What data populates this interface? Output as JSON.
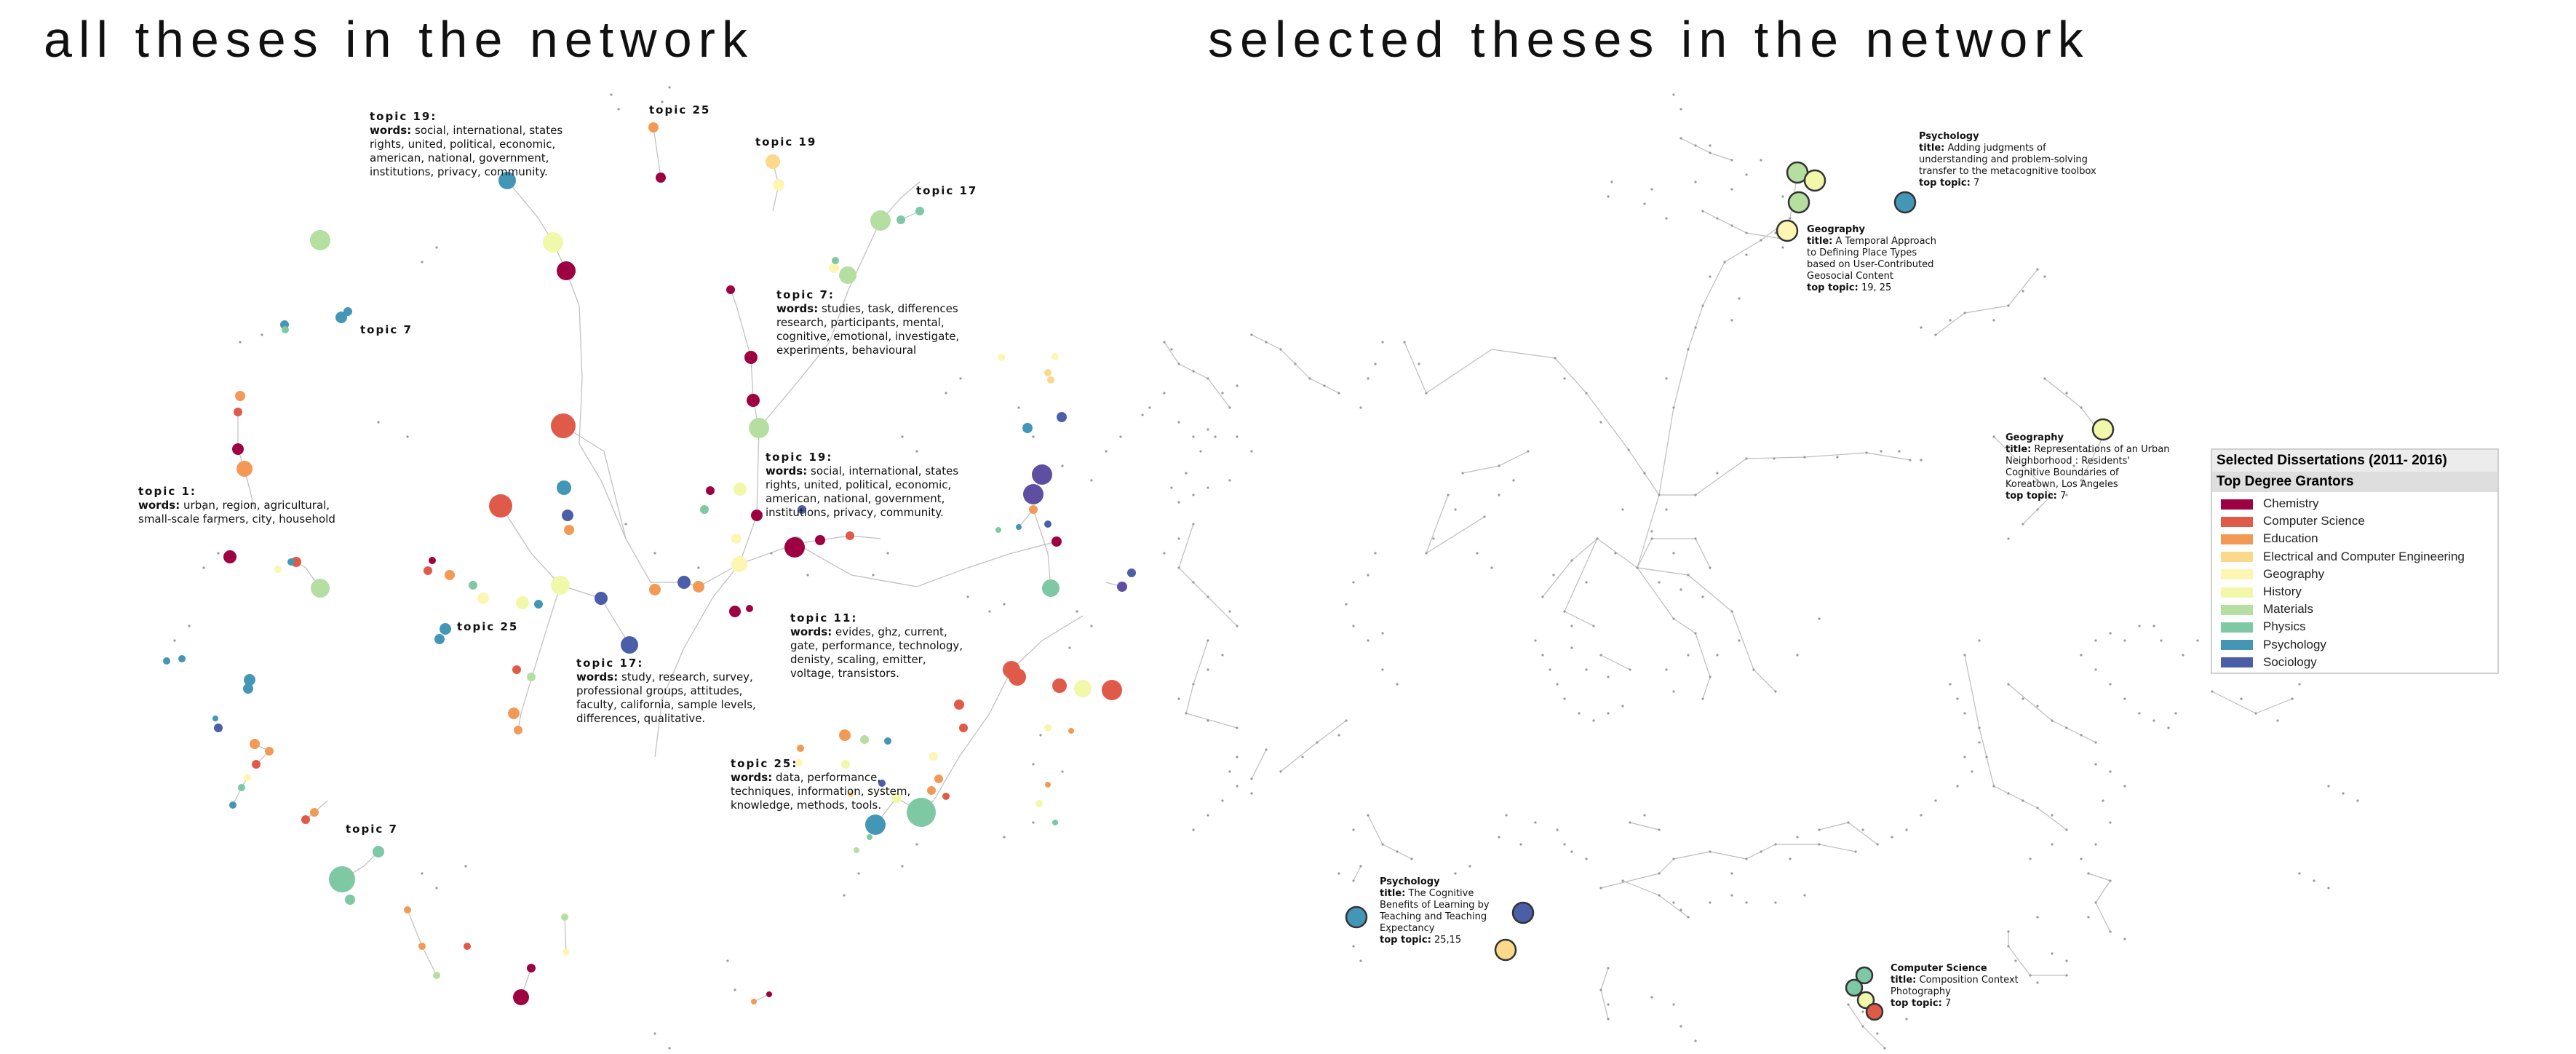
{
  "headings": {
    "left": "all theses in the network",
    "right": "selected theses in the network"
  },
  "colors": {
    "Chemistry": "#9e0142",
    "Computer Science": "#e05a4a",
    "Education": "#f29a55",
    "Electrical and Computer Engineering": "#fcd88a",
    "Geography": "#fdf6b2",
    "History": "#f1f8a9",
    "Materials": "#b4dfa1",
    "Physics": "#7ec8a4",
    "Psychology": "#4496b6",
    "Sociology": "#4a5fa8",
    "Other": "#5e4fa2",
    "edge": "#bdbdbd"
  },
  "left_annotations": [
    {
      "id": "t19a",
      "title": "topic 19:",
      "words_label": "words:",
      "words": "social, international, states rights, united, political, economic, american, national, government, institutions, privacy, community."
    },
    {
      "id": "t7a",
      "title": "topic 7:",
      "words_label": "words:",
      "words": "studies, task, differences research, participants, mental, cognitive, emotional, investigate, experiments, behavioural"
    },
    {
      "id": "t19b",
      "title": "topic 19:",
      "words_label": "words:",
      "words": "social, international, states rights, united, political, economic, american, national, government, institutions, privacy, community."
    },
    {
      "id": "t1",
      "title": "topic 1:",
      "words_label": "words:",
      "words": "urban, region, agricultural, small-scale farmers, city, household"
    },
    {
      "id": "t11",
      "title": "topic 11:",
      "words_label": "words:",
      "words": "evides, ghz, current, gate, performance, technology, denisty, scaling, emitter, voltage, transistors."
    },
    {
      "id": "t17",
      "title": "topic 17:",
      "words_label": "words:",
      "words": "study, research, survey, professional groups, attitudes, faculty, california, sample levels, differences, qualitative."
    },
    {
      "id": "t25",
      "title": "topic 25:",
      "words_label": "words:",
      "words": "data, performance, techniques, information, system, knowledge, methods, tools."
    }
  ],
  "left_tags": [
    "topic 25",
    "topic 19",
    "topic 17",
    "topic 7",
    "topic 25",
    "topic 7"
  ],
  "selected": [
    {
      "id": "psy1",
      "title": "Psychology",
      "title_label": "title:",
      "text": "Adding judgments of understanding and problem-solving transfer to the metacognitive toolbox",
      "top_label": "top topic:",
      "top": "7"
    },
    {
      "id": "geo1",
      "title": "Geography",
      "title_label": "title:",
      "text": "A Temporal Approach to Defining Place Types based on User-Contributed Geosocial Content",
      "top_label": "top topic:",
      "top": "19, 25"
    },
    {
      "id": "geo2",
      "title": "Geography",
      "title_label": "title:",
      "text": "Representations of an Urban Neighborhood : Residents' Cognitive Boundaries of Koreatown, Los Angeles",
      "top_label": "top topic:",
      "top": "7"
    },
    {
      "id": "psy2",
      "title": "Psychology",
      "title_label": "title:",
      "text": "The Cognitive Benefits of Learning by Teaching and Teaching Expectancy",
      "top_label": "top topic:",
      "top": "25,15"
    },
    {
      "id": "cs1",
      "title": "Computer Science",
      "title_label": "title:",
      "text": "Composition Context Photography",
      "top_label": "top topic:",
      "top": "7"
    }
  ],
  "legend": {
    "title": "Selected Dissertations (2011- 2016)",
    "subtitle": "Top Degree Grantors",
    "items": [
      {
        "label": "Chemistry",
        "color": "#9e0142"
      },
      {
        "label": "Computer Science",
        "color": "#e05a4a"
      },
      {
        "label": "Education",
        "color": "#f29a55"
      },
      {
        "label": "Electrical and Computer Engineering",
        "color": "#fcd88a"
      },
      {
        "label": "Geography",
        "color": "#fdf6b2"
      },
      {
        "label": "History",
        "color": "#f1f8a9"
      },
      {
        "label": "Materials",
        "color": "#b4dfa1"
      },
      {
        "label": "Physics",
        "color": "#7ec8a4"
      },
      {
        "label": "Psychology",
        "color": "#4496b6"
      },
      {
        "label": "Sociology",
        "color": "#4a5fa8"
      }
    ]
  }
}
